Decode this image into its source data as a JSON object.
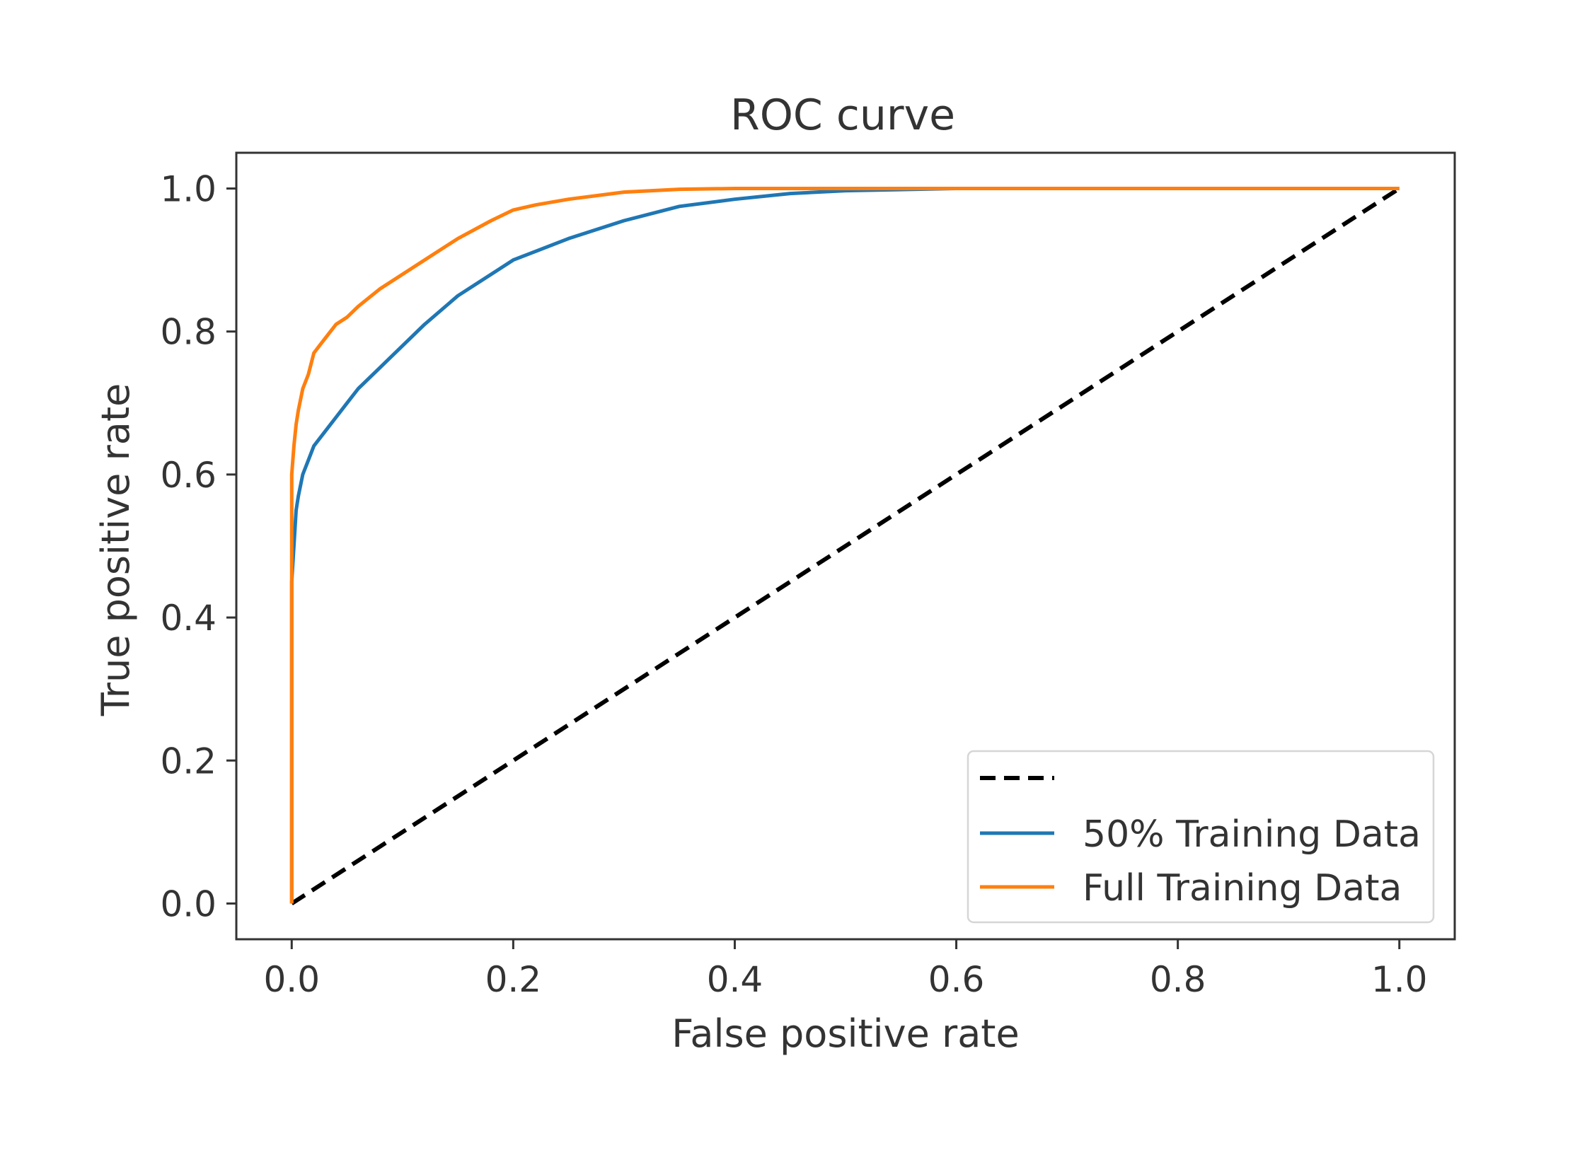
{
  "chart_data": {
    "type": "line",
    "title": "ROC curve",
    "xlabel": "False positive rate",
    "ylabel": "True positive rate",
    "xlim": [
      -0.05,
      1.05
    ],
    "ylim": [
      -0.05,
      1.05
    ],
    "xticks": [
      0.0,
      0.2,
      0.4,
      0.6,
      0.8,
      1.0
    ],
    "yticks": [
      0.0,
      0.2,
      0.4,
      0.6,
      0.8,
      1.0
    ],
    "tick_labels": [
      "0.0",
      "0.2",
      "0.4",
      "0.6",
      "0.8",
      "1.0"
    ],
    "grid": false,
    "legend_position": "lower-right",
    "series": [
      {
        "name": "",
        "style": "dashed",
        "color": "#000000",
        "x": [
          0.0,
          1.0
        ],
        "y": [
          0.0,
          1.0
        ]
      },
      {
        "name": "50% Training Data",
        "style": "solid",
        "color": "#1f77b4",
        "x": [
          0.0,
          0.0,
          0.002,
          0.004,
          0.006,
          0.01,
          0.015,
          0.02,
          0.03,
          0.04,
          0.05,
          0.06,
          0.08,
          0.1,
          0.12,
          0.15,
          0.18,
          0.2,
          0.25,
          0.3,
          0.35,
          0.4,
          0.45,
          0.5,
          0.6,
          0.7,
          0.8,
          0.9,
          1.0
        ],
        "y": [
          0.0,
          0.45,
          0.5,
          0.55,
          0.57,
          0.6,
          0.62,
          0.64,
          0.66,
          0.68,
          0.7,
          0.72,
          0.75,
          0.78,
          0.81,
          0.85,
          0.88,
          0.9,
          0.93,
          0.955,
          0.975,
          0.985,
          0.993,
          0.997,
          1.0,
          1.0,
          1.0,
          1.0,
          1.0
        ]
      },
      {
        "name": "Full Training Data",
        "style": "solid",
        "color": "#ff7f0e",
        "x": [
          0.0,
          0.0,
          0.002,
          0.004,
          0.006,
          0.01,
          0.015,
          0.02,
          0.025,
          0.03,
          0.04,
          0.05,
          0.06,
          0.08,
          0.1,
          0.12,
          0.15,
          0.18,
          0.2,
          0.22,
          0.25,
          0.3,
          0.35,
          0.4,
          0.5,
          0.6,
          0.7,
          0.8,
          0.9,
          1.0
        ],
        "y": [
          0.0,
          0.6,
          0.64,
          0.67,
          0.69,
          0.72,
          0.74,
          0.77,
          0.78,
          0.79,
          0.81,
          0.82,
          0.835,
          0.86,
          0.88,
          0.9,
          0.93,
          0.955,
          0.97,
          0.977,
          0.985,
          0.995,
          0.999,
          1.0,
          1.0,
          1.0,
          1.0,
          1.0,
          1.0,
          1.0
        ]
      }
    ]
  }
}
